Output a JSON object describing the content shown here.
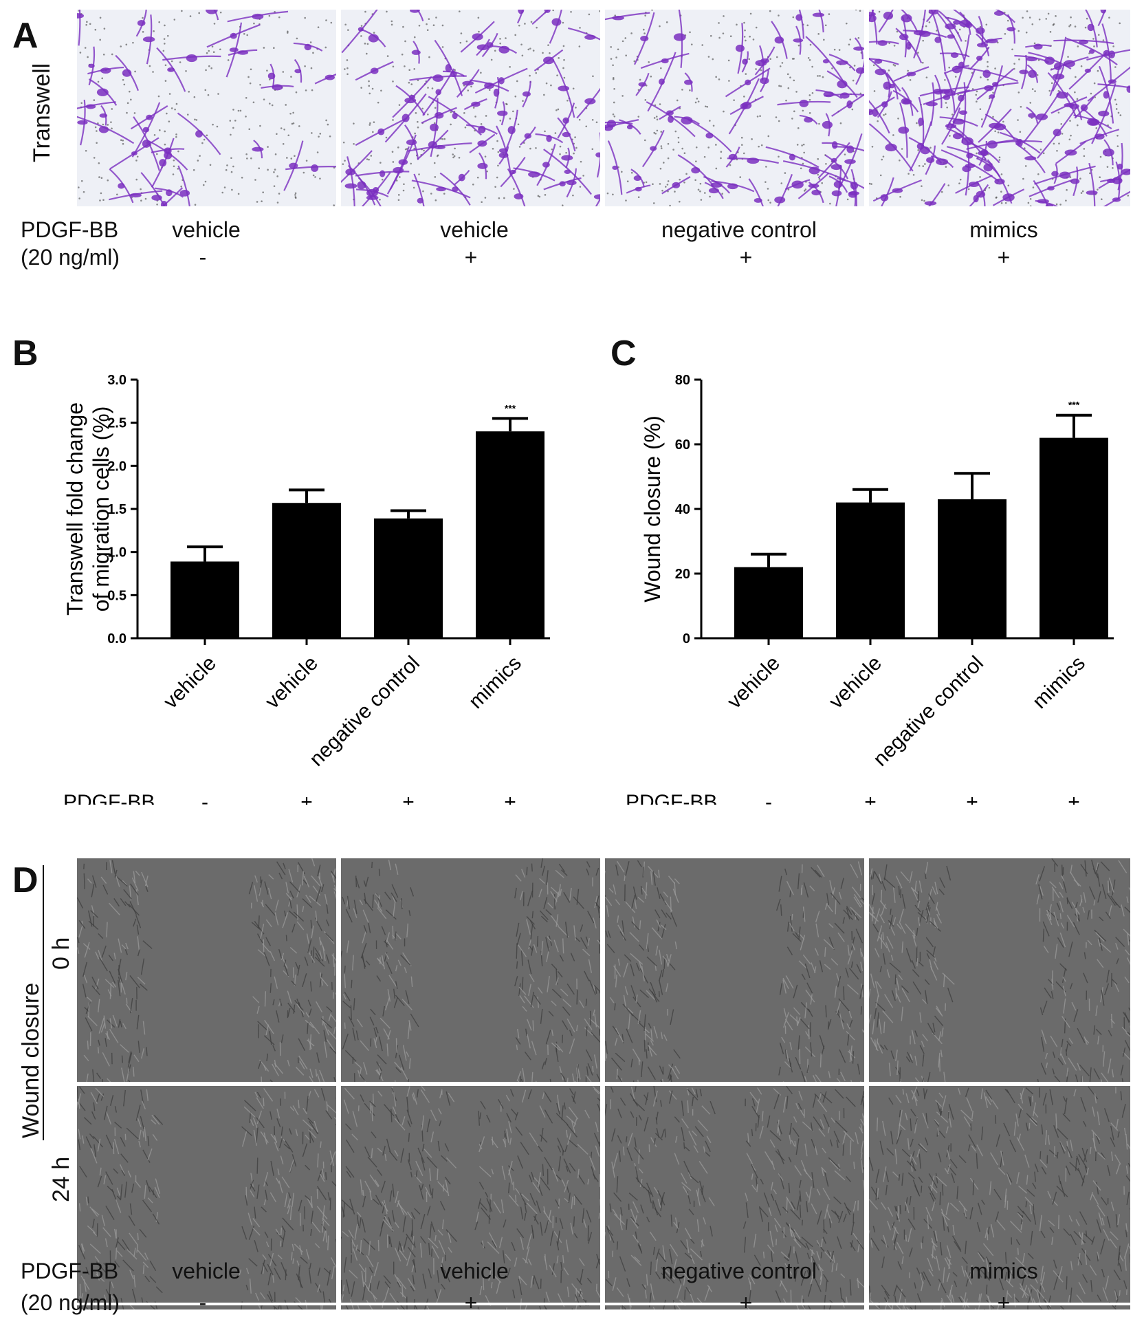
{
  "panels": {
    "a": {
      "letter": "A",
      "row_label": "Transwell",
      "condition_label": "PDGF-BB",
      "condition_sub": "(20 ng/ml)",
      "groups": [
        "vehicle",
        "vehicle",
        "negative control",
        "mimics"
      ],
      "signs": [
        "-",
        "+",
        "+",
        "+"
      ]
    },
    "b": {
      "letter": "B"
    },
    "c": {
      "letter": "C"
    },
    "d": {
      "letter": "D",
      "row_title": "Wound closure",
      "rows": [
        "0 h",
        "24 h"
      ],
      "condition_label": "PDGF-BB",
      "condition_sub": "(20 ng/ml)",
      "groups": [
        "vehicle",
        "vehicle",
        "negative control",
        "mimics"
      ],
      "signs": [
        "-",
        "+",
        "+",
        "+"
      ]
    }
  },
  "chart_data": [
    {
      "type": "bar",
      "ylabel_line1": "Transwell fold change",
      "ylabel_line2": "of migration cells (%)",
      "categories": [
        "vehicle",
        "vehicle",
        "negative control",
        "mimics"
      ],
      "values": [
        0.89,
        1.57,
        1.39,
        2.4
      ],
      "errors": [
        0.17,
        0.15,
        0.09,
        0.15
      ],
      "ylim": [
        0,
        3.0
      ],
      "yticks": [
        "0.0",
        "0.5",
        "1.0",
        "1.5",
        "2.0",
        "2.5",
        "3.0"
      ],
      "annotation": "***",
      "annotation_index": 3,
      "condition_label": "PDGF-BB",
      "signs": [
        "-",
        "+",
        "+",
        "+"
      ],
      "bar_color": "#000000"
    },
    {
      "type": "bar",
      "ylabel_line1": "Wound closure (%)",
      "categories": [
        "vehicle",
        "vehicle",
        "negative control",
        "mimics"
      ],
      "values": [
        22,
        42,
        43,
        62
      ],
      "errors": [
        4,
        4,
        8,
        7
      ],
      "ylim": [
        0,
        80
      ],
      "yticks": [
        "0",
        "20",
        "40",
        "60",
        "80"
      ],
      "annotation": "***",
      "annotation_index": 3,
      "condition_label": "PDGF-BB",
      "signs": [
        "-",
        "+",
        "+",
        "+"
      ],
      "bar_color": "#000000"
    }
  ],
  "colors": {
    "stain_purple": "#7a2fc0",
    "stain_bg": "#eef0f6",
    "phase_bg": "#6b6b6b",
    "phase_cells": "#9a9a9a"
  }
}
